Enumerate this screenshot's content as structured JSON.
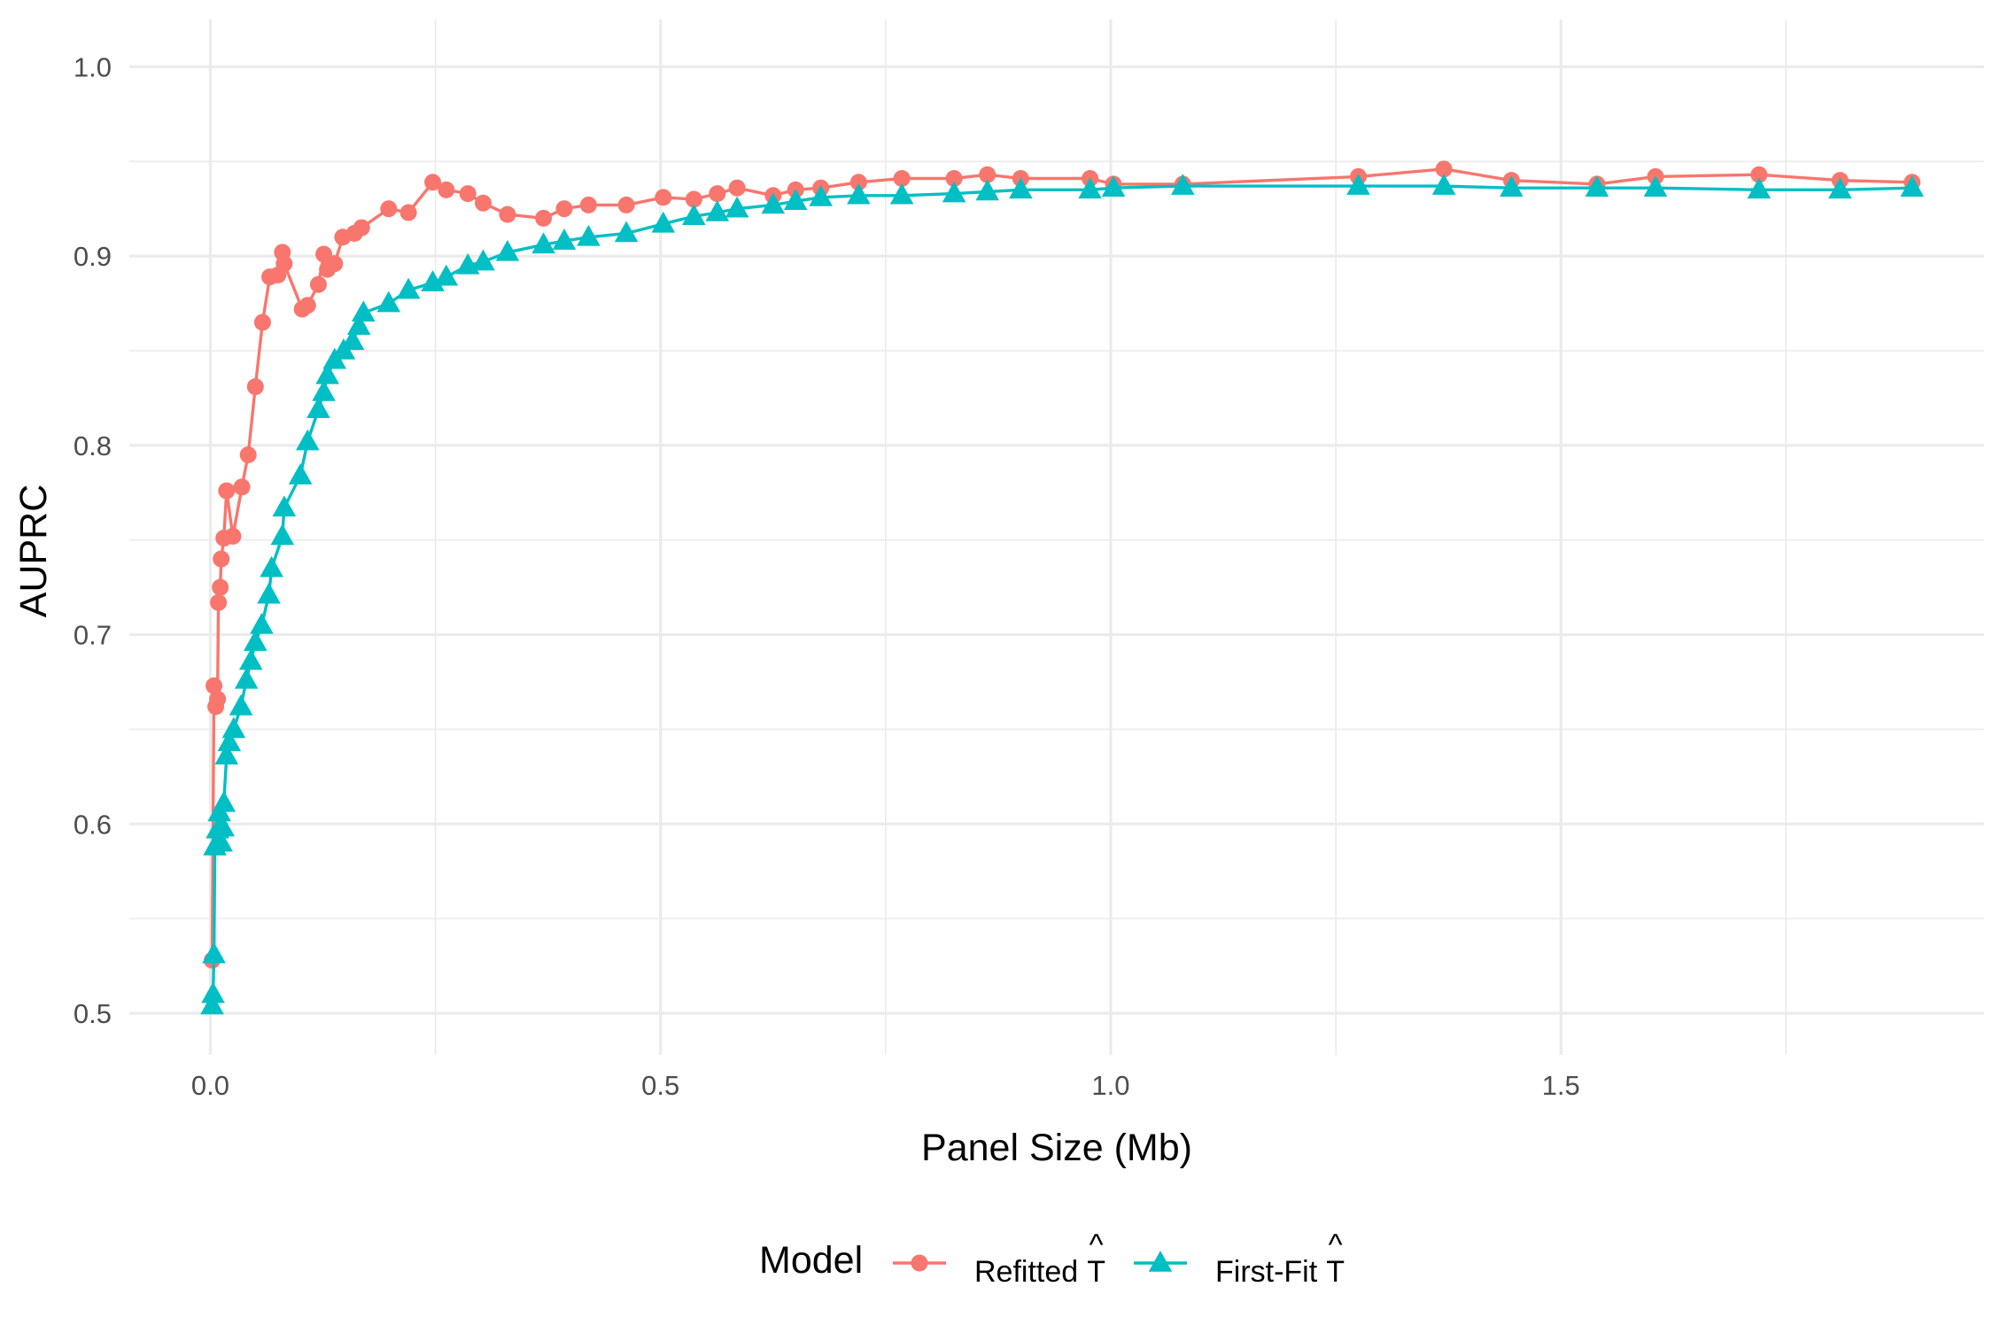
{
  "chart_data": {
    "type": "line",
    "title": "",
    "xlabel": "Panel Size (Mb)",
    "ylabel": "AUPRC",
    "xlim": [
      -0.09,
      1.97
    ],
    "ylim": [
      0.478,
      1.025
    ],
    "x_ticks": [
      0.0,
      0.5,
      1.0,
      1.5
    ],
    "x_tick_labels": [
      "0.0",
      "0.5",
      "1.0",
      "1.5"
    ],
    "y_ticks": [
      0.5,
      0.6,
      0.7,
      0.8,
      0.9,
      1.0
    ],
    "y_tick_labels": [
      "0.5",
      "0.6",
      "0.7",
      "0.8",
      "0.9",
      "1.0"
    ],
    "grid": true,
    "legend": {
      "position": "bottom",
      "title": "Model",
      "entries": [
        "Refitted",
        "First-Fit"
      ],
      "hat_symbol": "T"
    },
    "series": [
      {
        "name": "Refitted",
        "color": "#F8766D",
        "marker": "circle",
        "points": [
          [
            0.002,
            0.528
          ],
          [
            0.004,
            0.673
          ],
          [
            0.006,
            0.662
          ],
          [
            0.008,
            0.666
          ],
          [
            0.009,
            0.717
          ],
          [
            0.011,
            0.725
          ],
          [
            0.012,
            0.74
          ],
          [
            0.015,
            0.751
          ],
          [
            0.018,
            0.776
          ],
          [
            0.025,
            0.752
          ],
          [
            0.035,
            0.778
          ],
          [
            0.042,
            0.795
          ],
          [
            0.05,
            0.831
          ],
          [
            0.058,
            0.865
          ],
          [
            0.066,
            0.889
          ],
          [
            0.075,
            0.89
          ],
          [
            0.08,
            0.902
          ],
          [
            0.082,
            0.896
          ],
          [
            0.102,
            0.872
          ],
          [
            0.108,
            0.874
          ],
          [
            0.12,
            0.885
          ],
          [
            0.126,
            0.901
          ],
          [
            0.13,
            0.893
          ],
          [
            0.138,
            0.896
          ],
          [
            0.147,
            0.91
          ],
          [
            0.16,
            0.912
          ],
          [
            0.168,
            0.915
          ],
          [
            0.198,
            0.925
          ],
          [
            0.22,
            0.923
          ],
          [
            0.247,
            0.939
          ],
          [
            0.262,
            0.935
          ],
          [
            0.286,
            0.933
          ],
          [
            0.303,
            0.928
          ],
          [
            0.33,
            0.922
          ],
          [
            0.37,
            0.92
          ],
          [
            0.393,
            0.925
          ],
          [
            0.42,
            0.927
          ],
          [
            0.462,
            0.927
          ],
          [
            0.503,
            0.931
          ],
          [
            0.537,
            0.93
          ],
          [
            0.563,
            0.933
          ],
          [
            0.585,
            0.936
          ],
          [
            0.625,
            0.932
          ],
          [
            0.65,
            0.935
          ],
          [
            0.678,
            0.936
          ],
          [
            0.72,
            0.939
          ],
          [
            0.768,
            0.941
          ],
          [
            0.826,
            0.941
          ],
          [
            0.863,
            0.943
          ],
          [
            0.9,
            0.941
          ],
          [
            0.977,
            0.941
          ],
          [
            1.003,
            0.938
          ],
          [
            1.08,
            0.938
          ],
          [
            1.275,
            0.942
          ],
          [
            1.37,
            0.946
          ],
          [
            1.445,
            0.94
          ],
          [
            1.54,
            0.938
          ],
          [
            1.605,
            0.942
          ],
          [
            1.72,
            0.943
          ],
          [
            1.81,
            0.94
          ],
          [
            1.89,
            0.939
          ]
        ]
      },
      {
        "name": "First-Fit",
        "color": "#00BFC4",
        "marker": "triangle",
        "points": [
          [
            0.002,
            0.504
          ],
          [
            0.003,
            0.51
          ],
          [
            0.004,
            0.531
          ],
          [
            0.005,
            0.588
          ],
          [
            0.008,
            0.597
          ],
          [
            0.01,
            0.606
          ],
          [
            0.012,
            0.59
          ],
          [
            0.014,
            0.598
          ],
          [
            0.015,
            0.611
          ],
          [
            0.018,
            0.636
          ],
          [
            0.021,
            0.643
          ],
          [
            0.026,
            0.65
          ],
          [
            0.034,
            0.662
          ],
          [
            0.04,
            0.676
          ],
          [
            0.045,
            0.686
          ],
          [
            0.05,
            0.696
          ],
          [
            0.057,
            0.705
          ],
          [
            0.065,
            0.721
          ],
          [
            0.068,
            0.735
          ],
          [
            0.08,
            0.752
          ],
          [
            0.082,
            0.767
          ],
          [
            0.1,
            0.784
          ],
          [
            0.108,
            0.802
          ],
          [
            0.12,
            0.819
          ],
          [
            0.126,
            0.828
          ],
          [
            0.13,
            0.837
          ],
          [
            0.138,
            0.845
          ],
          [
            0.148,
            0.85
          ],
          [
            0.158,
            0.855
          ],
          [
            0.165,
            0.863
          ],
          [
            0.17,
            0.87
          ],
          [
            0.198,
            0.875
          ],
          [
            0.22,
            0.882
          ],
          [
            0.247,
            0.886
          ],
          [
            0.262,
            0.889
          ],
          [
            0.286,
            0.895
          ],
          [
            0.303,
            0.897
          ],
          [
            0.33,
            0.902
          ],
          [
            0.37,
            0.906
          ],
          [
            0.393,
            0.908
          ],
          [
            0.42,
            0.91
          ],
          [
            0.462,
            0.912
          ],
          [
            0.503,
            0.917
          ],
          [
            0.537,
            0.921
          ],
          [
            0.563,
            0.923
          ],
          [
            0.585,
            0.925
          ],
          [
            0.625,
            0.927
          ],
          [
            0.65,
            0.929
          ],
          [
            0.678,
            0.931
          ],
          [
            0.72,
            0.932
          ],
          [
            0.768,
            0.932
          ],
          [
            0.826,
            0.933
          ],
          [
            0.863,
            0.934
          ],
          [
            0.9,
            0.935
          ],
          [
            0.977,
            0.935
          ],
          [
            1.003,
            0.936
          ],
          [
            1.08,
            0.937
          ],
          [
            1.275,
            0.937
          ],
          [
            1.37,
            0.937
          ],
          [
            1.445,
            0.936
          ],
          [
            1.54,
            0.936
          ],
          [
            1.605,
            0.936
          ],
          [
            1.72,
            0.935
          ],
          [
            1.81,
            0.935
          ],
          [
            1.89,
            0.936
          ]
        ]
      }
    ]
  }
}
